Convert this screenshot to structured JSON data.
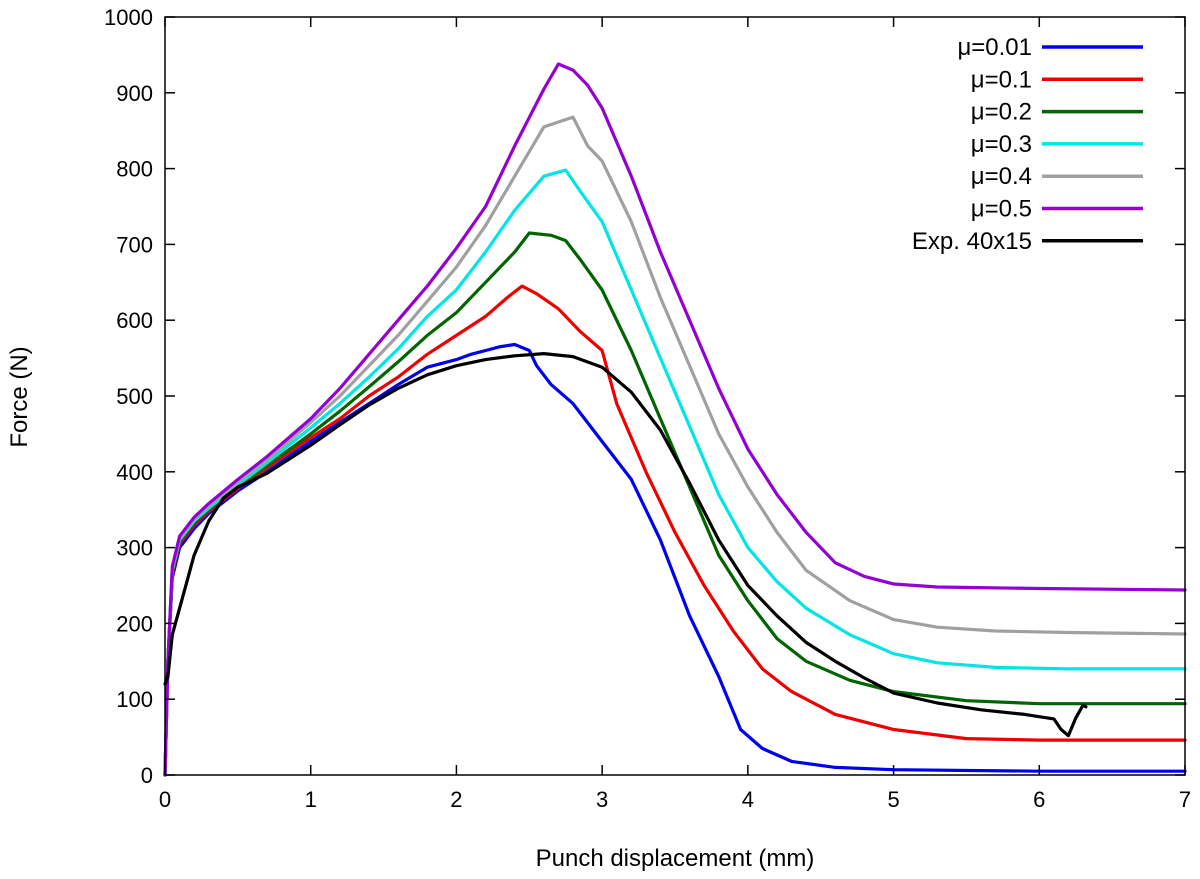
{
  "chart_data": {
    "type": "line",
    "title": "",
    "xlabel": "Punch displacement (mm)",
    "ylabel": "Force (N)",
    "xlim": [
      0,
      7
    ],
    "ylim": [
      0,
      1000
    ],
    "x_ticks": [
      0,
      1,
      2,
      3,
      4,
      5,
      6,
      7
    ],
    "y_ticks": [
      0,
      100,
      200,
      300,
      400,
      500,
      600,
      700,
      800,
      900,
      1000
    ],
    "grid": false,
    "legend_position": "top-right",
    "series": [
      {
        "name": "μ=0.01",
        "color": "#0000ee",
        "points": [
          [
            0,
            0
          ],
          [
            0.02,
            150
          ],
          [
            0.05,
            260
          ],
          [
            0.1,
            300
          ],
          [
            0.2,
            325
          ],
          [
            0.3,
            345
          ],
          [
            0.5,
            375
          ],
          [
            0.7,
            400
          ],
          [
            1.0,
            440
          ],
          [
            1.2,
            465
          ],
          [
            1.4,
            490
          ],
          [
            1.6,
            515
          ],
          [
            1.8,
            538
          ],
          [
            2.0,
            548
          ],
          [
            2.1,
            555
          ],
          [
            2.2,
            560
          ],
          [
            2.3,
            565
          ],
          [
            2.4,
            568
          ],
          [
            2.5,
            560
          ],
          [
            2.55,
            540
          ],
          [
            2.65,
            515
          ],
          [
            2.8,
            490
          ],
          [
            3.0,
            440
          ],
          [
            3.2,
            390
          ],
          [
            3.4,
            310
          ],
          [
            3.6,
            210
          ],
          [
            3.8,
            130
          ],
          [
            3.95,
            60
          ],
          [
            4.1,
            35
          ],
          [
            4.3,
            18
          ],
          [
            4.6,
            10
          ],
          [
            5.0,
            7
          ],
          [
            6.0,
            5
          ],
          [
            7.0,
            5
          ]
        ]
      },
      {
        "name": "μ=0.1",
        "color": "#ee0000",
        "points": [
          [
            0,
            0
          ],
          [
            0.02,
            150
          ],
          [
            0.05,
            265
          ],
          [
            0.1,
            305
          ],
          [
            0.2,
            330
          ],
          [
            0.3,
            348
          ],
          [
            0.5,
            378
          ],
          [
            0.7,
            405
          ],
          [
            1.0,
            445
          ],
          [
            1.2,
            470
          ],
          [
            1.4,
            500
          ],
          [
            1.6,
            525
          ],
          [
            1.8,
            555
          ],
          [
            2.0,
            580
          ],
          [
            2.2,
            605
          ],
          [
            2.35,
            630
          ],
          [
            2.45,
            645
          ],
          [
            2.55,
            635
          ],
          [
            2.7,
            615
          ],
          [
            2.85,
            585
          ],
          [
            3.0,
            560
          ],
          [
            3.1,
            490
          ],
          [
            3.3,
            400
          ],
          [
            3.5,
            320
          ],
          [
            3.7,
            250
          ],
          [
            3.9,
            190
          ],
          [
            4.1,
            140
          ],
          [
            4.3,
            110
          ],
          [
            4.6,
            80
          ],
          [
            5.0,
            60
          ],
          [
            5.5,
            48
          ],
          [
            6.0,
            46
          ],
          [
            7.0,
            46
          ]
        ]
      },
      {
        "name": "μ=0.2",
        "color": "#006400",
        "points": [
          [
            0,
            0
          ],
          [
            0.02,
            150
          ],
          [
            0.05,
            268
          ],
          [
            0.1,
            308
          ],
          [
            0.2,
            333
          ],
          [
            0.3,
            350
          ],
          [
            0.5,
            380
          ],
          [
            0.7,
            408
          ],
          [
            1.0,
            450
          ],
          [
            1.2,
            480
          ],
          [
            1.4,
            512
          ],
          [
            1.6,
            545
          ],
          [
            1.8,
            580
          ],
          [
            2.0,
            610
          ],
          [
            2.2,
            650
          ],
          [
            2.4,
            690
          ],
          [
            2.5,
            715
          ],
          [
            2.65,
            712
          ],
          [
            2.75,
            705
          ],
          [
            2.85,
            680
          ],
          [
            3.0,
            640
          ],
          [
            3.2,
            560
          ],
          [
            3.4,
            470
          ],
          [
            3.6,
            380
          ],
          [
            3.8,
            290
          ],
          [
            4.0,
            230
          ],
          [
            4.2,
            180
          ],
          [
            4.4,
            150
          ],
          [
            4.7,
            125
          ],
          [
            5.0,
            110
          ],
          [
            5.5,
            98
          ],
          [
            6.0,
            94
          ],
          [
            7.0,
            94
          ]
        ]
      },
      {
        "name": "μ=0.3",
        "color": "#00e5e5",
        "points": [
          [
            0,
            0
          ],
          [
            0.02,
            150
          ],
          [
            0.05,
            270
          ],
          [
            0.1,
            310
          ],
          [
            0.2,
            335
          ],
          [
            0.3,
            352
          ],
          [
            0.5,
            383
          ],
          [
            0.7,
            412
          ],
          [
            1.0,
            458
          ],
          [
            1.2,
            490
          ],
          [
            1.4,
            525
          ],
          [
            1.6,
            562
          ],
          [
            1.8,
            605
          ],
          [
            2.0,
            640
          ],
          [
            2.2,
            690
          ],
          [
            2.4,
            745
          ],
          [
            2.6,
            790
          ],
          [
            2.75,
            798
          ],
          [
            2.85,
            770
          ],
          [
            3.0,
            730
          ],
          [
            3.2,
            640
          ],
          [
            3.4,
            550
          ],
          [
            3.6,
            460
          ],
          [
            3.8,
            370
          ],
          [
            4.0,
            300
          ],
          [
            4.2,
            255
          ],
          [
            4.4,
            220
          ],
          [
            4.7,
            185
          ],
          [
            5.0,
            160
          ],
          [
            5.3,
            148
          ],
          [
            5.7,
            142
          ],
          [
            6.2,
            140
          ],
          [
            7.0,
            140
          ]
        ]
      },
      {
        "name": "μ=0.4",
        "color": "#a0a0a0",
        "points": [
          [
            0,
            0
          ],
          [
            0.02,
            150
          ],
          [
            0.05,
            272
          ],
          [
            0.1,
            312
          ],
          [
            0.2,
            338
          ],
          [
            0.3,
            355
          ],
          [
            0.5,
            387
          ],
          [
            0.7,
            416
          ],
          [
            1.0,
            465
          ],
          [
            1.2,
            500
          ],
          [
            1.4,
            540
          ],
          [
            1.6,
            580
          ],
          [
            1.8,
            625
          ],
          [
            2.0,
            670
          ],
          [
            2.2,
            725
          ],
          [
            2.4,
            790
          ],
          [
            2.6,
            855
          ],
          [
            2.8,
            868
          ],
          [
            2.9,
            830
          ],
          [
            3.0,
            810
          ],
          [
            3.2,
            730
          ],
          [
            3.4,
            630
          ],
          [
            3.6,
            540
          ],
          [
            3.8,
            450
          ],
          [
            4.0,
            380
          ],
          [
            4.2,
            320
          ],
          [
            4.4,
            270
          ],
          [
            4.7,
            230
          ],
          [
            5.0,
            205
          ],
          [
            5.3,
            195
          ],
          [
            5.7,
            190
          ],
          [
            6.2,
            188
          ],
          [
            7.0,
            186
          ]
        ]
      },
      {
        "name": "μ=0.5",
        "color": "#9400d3",
        "points": [
          [
            0,
            0
          ],
          [
            0.02,
            150
          ],
          [
            0.05,
            275
          ],
          [
            0.1,
            315
          ],
          [
            0.2,
            340
          ],
          [
            0.3,
            358
          ],
          [
            0.5,
            390
          ],
          [
            0.7,
            420
          ],
          [
            1.0,
            470
          ],
          [
            1.2,
            510
          ],
          [
            1.4,
            555
          ],
          [
            1.6,
            600
          ],
          [
            1.8,
            645
          ],
          [
            2.0,
            695
          ],
          [
            2.2,
            750
          ],
          [
            2.4,
            830
          ],
          [
            2.6,
            905
          ],
          [
            2.7,
            938
          ],
          [
            2.8,
            930
          ],
          [
            2.9,
            910
          ],
          [
            3.0,
            880
          ],
          [
            3.2,
            790
          ],
          [
            3.4,
            690
          ],
          [
            3.6,
            600
          ],
          [
            3.8,
            510
          ],
          [
            4.0,
            430
          ],
          [
            4.2,
            370
          ],
          [
            4.4,
            320
          ],
          [
            4.6,
            280
          ],
          [
            4.8,
            262
          ],
          [
            5.0,
            252
          ],
          [
            5.3,
            248
          ],
          [
            6.0,
            246
          ],
          [
            7.0,
            244
          ]
        ]
      },
      {
        "name": "Exp. 40x15",
        "color": "#000000",
        "points": [
          [
            0,
            120
          ],
          [
            0.02,
            130
          ],
          [
            0.05,
            185
          ],
          [
            0.1,
            220
          ],
          [
            0.15,
            255
          ],
          [
            0.2,
            290
          ],
          [
            0.3,
            335
          ],
          [
            0.4,
            365
          ],
          [
            0.5,
            380
          ],
          [
            0.7,
            398
          ],
          [
            1.0,
            435
          ],
          [
            1.2,
            462
          ],
          [
            1.4,
            488
          ],
          [
            1.6,
            510
          ],
          [
            1.8,
            528
          ],
          [
            2.0,
            540
          ],
          [
            2.2,
            548
          ],
          [
            2.4,
            553
          ],
          [
            2.6,
            556
          ],
          [
            2.8,
            552
          ],
          [
            3.0,
            538
          ],
          [
            3.2,
            505
          ],
          [
            3.4,
            455
          ],
          [
            3.6,
            385
          ],
          [
            3.8,
            310
          ],
          [
            4.0,
            250
          ],
          [
            4.2,
            210
          ],
          [
            4.4,
            175
          ],
          [
            4.6,
            150
          ],
          [
            4.8,
            128
          ],
          [
            5.0,
            108
          ],
          [
            5.3,
            95
          ],
          [
            5.6,
            86
          ],
          [
            5.9,
            80
          ],
          [
            6.1,
            74
          ],
          [
            6.15,
            60
          ],
          [
            6.2,
            52
          ],
          [
            6.25,
            75
          ],
          [
            6.3,
            92
          ],
          [
            6.32,
            90
          ]
        ]
      }
    ]
  }
}
